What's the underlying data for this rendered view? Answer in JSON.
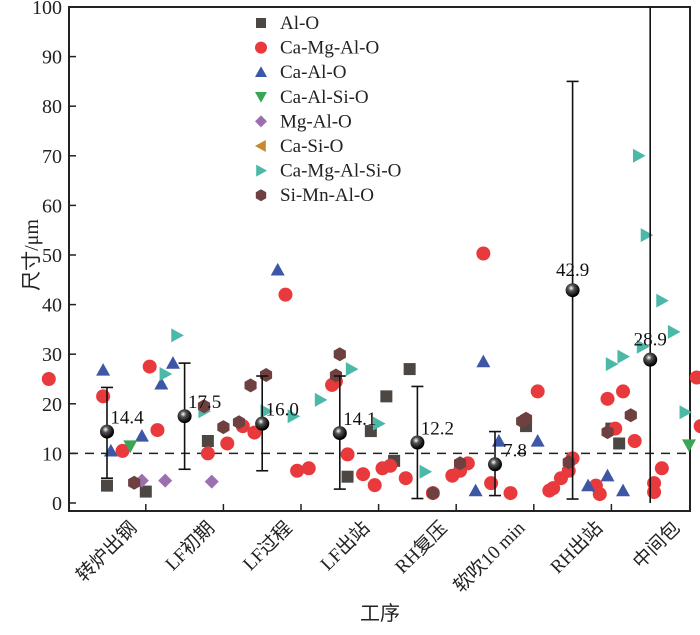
{
  "chart_data": {
    "type": "scatter",
    "title": "",
    "xlabel": "工序",
    "ylabel": "尺寸/μm",
    "ylim": [
      0,
      100
    ],
    "yticks": [
      0,
      10,
      20,
      30,
      40,
      50,
      60,
      70,
      80,
      90,
      100
    ],
    "reference_line": 10,
    "legend_position": "top-center",
    "categories": [
      "转炉出钢",
      "LF初期",
      "LF过程",
      "LF出站",
      "RH复压",
      "软吹10 min",
      "RH出站",
      "中间包"
    ],
    "colors": {
      "Al-O": "#4d4744",
      "Ca-Mg-Al-O": "#e8393c",
      "Ca-Al-O": "#3d56a6",
      "Ca-Al-Si-O": "#3aa655",
      "Mg-Al-O": "#9b6fb0",
      "Ca-Si-O": "#c8892e",
      "Ca-Mg-Al-Si-O": "#4bb8a8",
      "Si-Mn-Al-O": "#6e4040"
    },
    "series": [
      {
        "name": "Al-O",
        "marker": "square",
        "points": [
          [
            0,
            3.5
          ],
          [
            0.5,
            2.3
          ],
          [
            1.3,
            12.5
          ],
          [
            3.1,
            5.3
          ],
          [
            3.6,
            21.5
          ],
          [
            3.4,
            14.5
          ],
          [
            3.9,
            27
          ],
          [
            3.7,
            8.5
          ],
          [
            5.4,
            15.5
          ],
          [
            6.5,
            15
          ],
          [
            6.6,
            12
          ]
        ]
      },
      {
        "name": "Ca-Mg-Al-O",
        "marker": "circle",
        "points": [
          [
            -0.75,
            25
          ],
          [
            -0.05,
            21.5
          ],
          [
            0.2,
            10.5
          ],
          [
            0.55,
            27.5
          ],
          [
            0.65,
            14.7
          ],
          [
            1.3,
            10
          ],
          [
            1.55,
            12
          ],
          [
            1.75,
            15.5
          ],
          [
            1.9,
            14.2
          ],
          [
            2.0,
            16
          ],
          [
            2.3,
            42
          ],
          [
            2.45,
            6.5
          ],
          [
            2.6,
            7
          ],
          [
            2.9,
            23.8
          ],
          [
            2.95,
            24.5
          ],
          [
            3.1,
            9.8
          ],
          [
            3.3,
            5.8
          ],
          [
            3.45,
            3.6
          ],
          [
            3.55,
            7
          ],
          [
            3.65,
            7.5
          ],
          [
            3.85,
            5
          ],
          [
            4.2,
            2
          ],
          [
            4.45,
            5.5
          ],
          [
            4.55,
            6.5
          ],
          [
            4.65,
            8
          ],
          [
            4.85,
            50.3
          ],
          [
            4.95,
            4
          ],
          [
            5.55,
            22.5
          ],
          [
            5.2,
            2
          ],
          [
            5.7,
            2.5
          ],
          [
            5.75,
            3
          ],
          [
            5.85,
            5
          ],
          [
            5.95,
            6.5
          ],
          [
            6.0,
            9
          ],
          [
            6.3,
            3.5
          ],
          [
            6.35,
            1.8
          ],
          [
            6.45,
            21
          ],
          [
            6.55,
            15
          ],
          [
            6.65,
            22.5
          ],
          [
            6.8,
            12.5
          ],
          [
            7.05,
            4
          ],
          [
            7.15,
            7
          ],
          [
            7.05,
            2.2
          ],
          [
            7.6,
            25.3
          ],
          [
            7.65,
            15.5
          ],
          [
            8.0,
            4.5
          ],
          [
            8.1,
            5
          ],
          [
            8.2,
            2
          ],
          [
            8.35,
            12
          ],
          [
            8.4,
            0.5
          ],
          [
            8.5,
            2.5
          ],
          [
            8.65,
            2.2
          ]
        ]
      },
      {
        "name": "Ca-Al-O",
        "marker": "triangle-up",
        "points": [
          [
            -0.05,
            26.8
          ],
          [
            0.05,
            10.5
          ],
          [
            0.45,
            13.5
          ],
          [
            0.7,
            24
          ],
          [
            0.85,
            28.2
          ],
          [
            2.2,
            47
          ],
          [
            4.75,
            2.5
          ],
          [
            4.85,
            28.5
          ],
          [
            5.05,
            12.5
          ],
          [
            5.55,
            12.5
          ],
          [
            6.2,
            3.5
          ],
          [
            6.45,
            5.5
          ],
          [
            6.65,
            2.5
          ],
          [
            7.85,
            3
          ],
          [
            8.1,
            2.2
          ],
          [
            8.25,
            2.2
          ]
        ]
      },
      {
        "name": "Ca-Al-Si-O",
        "marker": "triangle-down",
        "points": [
          [
            0.3,
            11.5
          ],
          [
            7.5,
            11.7
          ],
          [
            8.25,
            12.8
          ]
        ]
      },
      {
        "name": "Mg-Al-O",
        "marker": "diamond",
        "points": [
          [
            0.45,
            4.5
          ],
          [
            0.75,
            4.5
          ],
          [
            1.35,
            4.3
          ],
          [
            8.45,
            4.8
          ]
        ]
      },
      {
        "name": "Ca-Si-O",
        "marker": "triangle-left",
        "points": []
      },
      {
        "name": "Ca-Mg-Al-Si-O",
        "marker": "triangle-right",
        "points": [
          [
            0.75,
            26
          ],
          [
            0.9,
            33.8
          ],
          [
            1.25,
            18.5
          ],
          [
            2.05,
            18.5
          ],
          [
            2.4,
            17.5
          ],
          [
            2.75,
            20.8
          ],
          [
            3.15,
            27
          ],
          [
            3.5,
            16
          ],
          [
            4.1,
            6.3
          ],
          [
            6.5,
            28
          ],
          [
            6.65,
            29.5
          ],
          [
            6.85,
            70
          ],
          [
            6.95,
            54
          ],
          [
            6.9,
            31.5
          ],
          [
            7.15,
            40.8
          ],
          [
            7.3,
            34.5
          ],
          [
            7.45,
            18.3
          ],
          [
            8.5,
            13.5
          ]
        ]
      },
      {
        "name": "Si-Mn-Al-O",
        "marker": "hexagon",
        "points": [
          [
            0.35,
            4.1
          ],
          [
            1.25,
            19.5
          ],
          [
            1.5,
            15.3
          ],
          [
            1.7,
            16.3
          ],
          [
            1.85,
            23.7
          ],
          [
            2.05,
            25.8
          ],
          [
            2.95,
            25.7
          ],
          [
            3.0,
            30
          ],
          [
            4.2,
            2
          ],
          [
            4.55,
            8
          ],
          [
            5.95,
            8.2
          ],
          [
            5.35,
            16.5
          ],
          [
            5.4,
            17
          ],
          [
            6.45,
            14.3
          ],
          [
            6.75,
            17.7
          ]
        ]
      }
    ],
    "means": [
      {
        "category": "转炉出钢",
        "mean": 14.4,
        "err_low": 5.0,
        "err_high": 23.3
      },
      {
        "category": "LF初期",
        "mean": 17.5,
        "err_low": 6.8,
        "err_high": 28.2
      },
      {
        "category": "LF过程",
        "mean": 16.0,
        "err_low": 6.5,
        "err_high": 25.6
      },
      {
        "category": "LF出站",
        "mean": 14.1,
        "err_low": 2.8,
        "err_high": 25.6
      },
      {
        "category": "RH复压",
        "mean": 12.2,
        "err_low": 0.9,
        "err_high": 23.5
      },
      {
        "category": "软吹10 min",
        "mean": 7.8,
        "err_low": 1.5,
        "err_high": 14.4
      },
      {
        "category": "RH出站",
        "mean": 42.9,
        "err_low": 0.8,
        "err_high": 85.0
      },
      {
        "category": "中间包",
        "mean": 28.9,
        "err_low": 0,
        "err_high": 100
      }
    ]
  }
}
